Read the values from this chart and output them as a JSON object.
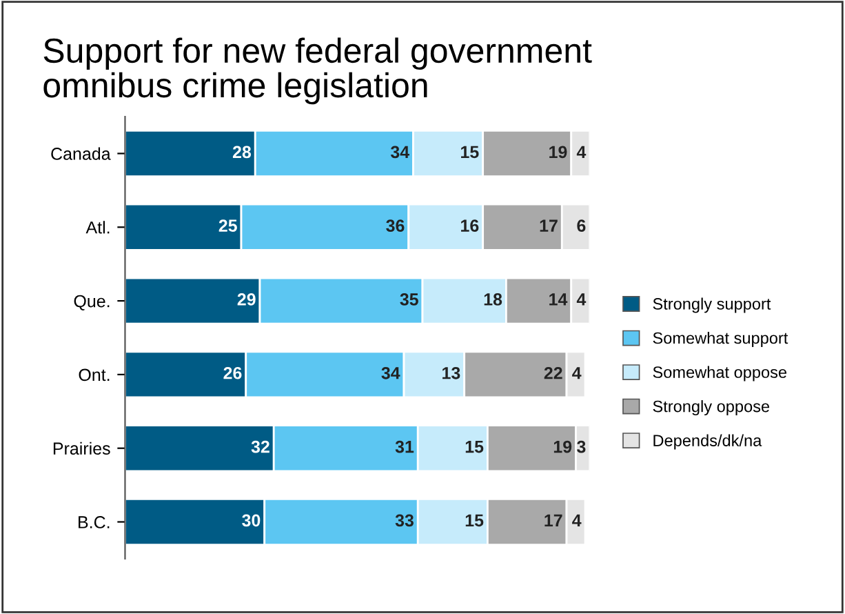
{
  "chart_data": {
    "type": "bar",
    "orientation": "horizontal",
    "stacked": true,
    "title": "Support for new federal government\nomnibus crime legislation",
    "categories": [
      "Canada",
      "Atl.",
      "Que.",
      "Ont.",
      "Prairies",
      "B.C."
    ],
    "series": [
      {
        "name": "Strongly support",
        "color": "#005b85",
        "values": [
          28,
          25,
          29,
          26,
          32,
          30
        ]
      },
      {
        "name": "Somewhat support",
        "color": "#5cc6f2",
        "values": [
          34,
          36,
          35,
          34,
          31,
          33
        ]
      },
      {
        "name": "Somewhat oppose",
        "color": "#c6ebfb",
        "values": [
          15,
          16,
          18,
          13,
          15,
          15
        ]
      },
      {
        "name": "Strongly oppose",
        "color": "#a9a9a9",
        "values": [
          19,
          17,
          14,
          22,
          19,
          17
        ]
      },
      {
        "name": "Depends/dk/na",
        "color": "#e4e4e4",
        "values": [
          4,
          6,
          4,
          4,
          3,
          4
        ]
      }
    ],
    "data_labels": true,
    "legend": "right",
    "tick_labels": "y"
  }
}
